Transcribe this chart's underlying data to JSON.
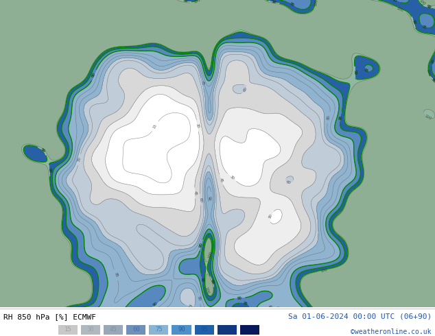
{
  "title_left": "RH 850 hPa [%] ECMWF",
  "title_right": "Sa 01-06-2024 00:00 UTC (06+90)",
  "credit": "©weatheronline.co.uk",
  "legend_values": [
    15,
    30,
    45,
    60,
    75,
    90,
    95,
    99,
    100
  ],
  "fig_bg": "#ffffff",
  "bottom_bar_color": "#e0e0e0",
  "title_left_color": "#000000",
  "title_right_color": "#2255aa",
  "credit_color": "#2255aa",
  "fill_colors": [
    "#ffffff",
    "#e8e8e8",
    "#d0d0d0",
    "#b8c8d8",
    "#90aac8",
    "#6090c0",
    "#3060a8",
    "#103880",
    "#081850"
  ],
  "contour_line_color": "#808080",
  "green_line_color": "#008800",
  "legend_swatch_colors": [
    "#c8c8c8",
    "#b0b8c0",
    "#98a8b8",
    "#7090b8",
    "#8ab4d0",
    "#5090c8",
    "#2060a8",
    "#103880",
    "#081858"
  ],
  "legend_text_colors": [
    "#a0a0a0",
    "#a0a0a0",
    "#8090a0",
    "#4070b0",
    "#4080b8",
    "#2060a8",
    "#1050a0",
    "#103878",
    "#081858"
  ]
}
